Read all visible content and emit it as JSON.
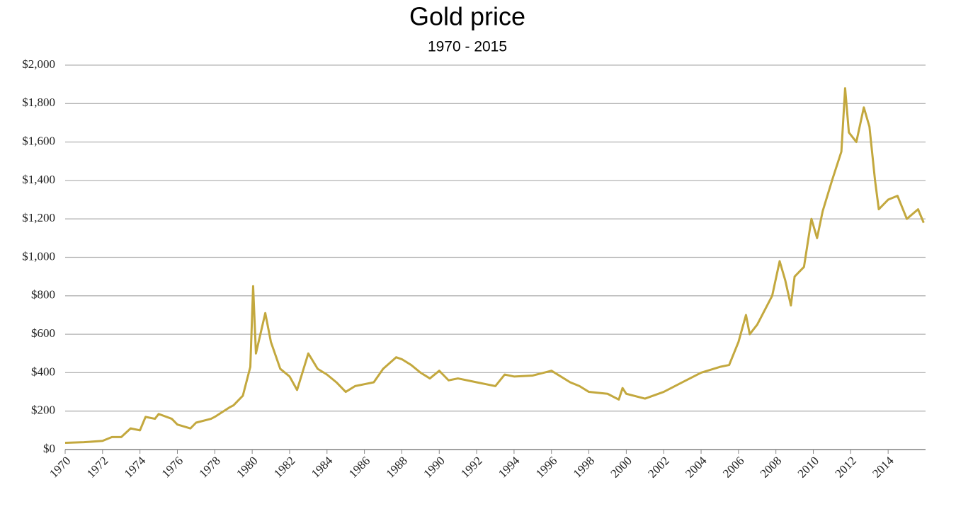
{
  "chart_data": {
    "type": "line",
    "title": "Gold price",
    "subtitle": "1970 - 2015",
    "xlim": [
      1970,
      2016
    ],
    "xticks": [
      1970,
      1972,
      1974,
      1976,
      1978,
      1980,
      1982,
      1984,
      1986,
      1988,
      1990,
      1992,
      1994,
      1996,
      1998,
      2000,
      2002,
      2004,
      2006,
      2008,
      2010,
      2012,
      2014
    ],
    "ylim": [
      0,
      2000
    ],
    "yticks": [
      {
        "value": 0,
        "label": "$0"
      },
      {
        "value": 200,
        "label": "$200"
      },
      {
        "value": 400,
        "label": "$400"
      },
      {
        "value": 600,
        "label": "$600"
      },
      {
        "value": 800,
        "label": "$800"
      },
      {
        "value": 1000,
        "label": "$1,000"
      },
      {
        "value": 1200,
        "label": "$1,200"
      },
      {
        "value": 1400,
        "label": "$1,400"
      },
      {
        "value": 1600,
        "label": "$1,600"
      },
      {
        "value": 1800,
        "label": "$1,800"
      },
      {
        "value": 2000,
        "label": "$2,000"
      }
    ],
    "grid": true,
    "x": [
      1970,
      1971,
      1972,
      1972.5,
      1973,
      1973.5,
      1974,
      1974.3,
      1974.8,
      1975,
      1975.7,
      1976,
      1976.7,
      1977,
      1977.8,
      1978,
      1978.8,
      1979,
      1979.5,
      1979.9,
      1980.05,
      1980.2,
      1980.7,
      1981,
      1981.5,
      1982,
      1982.4,
      1983,
      1983.5,
      1984,
      1984.5,
      1985,
      1985.5,
      1986,
      1986.5,
      1987,
      1987.7,
      1988,
      1988.5,
      1989,
      1989.5,
      1990,
      1990.5,
      1991,
      1992,
      1992.5,
      1993,
      1993.5,
      1994,
      1995,
      1996,
      1996.5,
      1997,
      1997.5,
      1998,
      1999,
      1999.6,
      1999.8,
      2000,
      2001,
      2002,
      2003,
      2004,
      2005,
      2005.5,
      2006,
      2006.4,
      2006.6,
      2007,
      2007.8,
      2008.2,
      2008.5,
      2008.8,
      2009,
      2009.5,
      2009.9,
      2010.2,
      2010.5,
      2011,
      2011.5,
      2011.7,
      2011.9,
      2012.3,
      2012.7,
      2013,
      2013.3,
      2013.5,
      2014,
      2014.5,
      2015,
      2015.6,
      2015.9
    ],
    "series": [
      {
        "name": "Gold price",
        "color": "#c3a83e",
        "values": [
          35,
          38,
          45,
          65,
          65,
          110,
          100,
          170,
          160,
          185,
          160,
          130,
          110,
          140,
          160,
          170,
          220,
          230,
          280,
          430,
          850,
          500,
          710,
          560,
          420,
          380,
          310,
          500,
          420,
          390,
          350,
          300,
          330,
          340,
          350,
          420,
          480,
          470,
          440,
          400,
          370,
          410,
          360,
          370,
          350,
          340,
          330,
          390,
          380,
          385,
          410,
          380,
          350,
          330,
          300,
          290,
          260,
          320,
          290,
          265,
          300,
          350,
          400,
          430,
          440,
          560,
          700,
          600,
          650,
          800,
          980,
          880,
          750,
          900,
          950,
          1200,
          1100,
          1240,
          1400,
          1550,
          1880,
          1650,
          1600,
          1780,
          1680,
          1400,
          1250,
          1300,
          1320,
          1200,
          1250,
          1180
        ]
      }
    ]
  }
}
